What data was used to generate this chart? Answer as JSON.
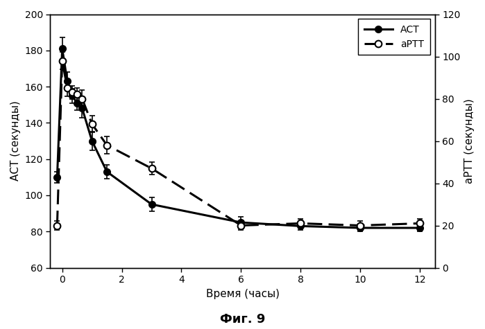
{
  "title": "Фиг. 9",
  "xlabel": "Время (часы)",
  "ylabel_left": "АСТ (секунды)",
  "ylabel_right": "аРТТ (секунды)",
  "ylim_left": [
    60,
    200
  ],
  "ylim_right": [
    0,
    120
  ],
  "xlim": [
    -0.4,
    12.5
  ],
  "xticks": [
    0,
    2,
    4,
    6,
    8,
    10,
    12
  ],
  "yticks_left": [
    60,
    80,
    100,
    120,
    140,
    160,
    180,
    200
  ],
  "yticks_right": [
    0,
    20,
    40,
    60,
    80,
    100,
    120
  ],
  "ACT_x": [
    -0.17,
    0.0,
    0.17,
    0.33,
    0.5,
    0.67,
    1.0,
    1.5,
    3.0,
    6.0,
    8.0,
    10.0,
    12.0
  ],
  "ACT_y": [
    110,
    181,
    163,
    155,
    151,
    148,
    130,
    113,
    95,
    85,
    83,
    82,
    82
  ],
  "ACT_yerr": [
    3,
    6,
    5,
    4,
    4,
    5,
    5,
    4,
    4,
    3,
    2,
    2,
    2
  ],
  "aPTT_x": [
    -0.17,
    0.0,
    0.17,
    0.33,
    0.5,
    0.67,
    1.0,
    1.5,
    3.0,
    6.0,
    8.0,
    10.0,
    12.0
  ],
  "aPTT_y": [
    20,
    98,
    85,
    83,
    82,
    80,
    68,
    58,
    47,
    20,
    21,
    20,
    21
  ],
  "aPTT_yerr": [
    2,
    4,
    4,
    3,
    3,
    4,
    4,
    4,
    3,
    2,
    2,
    2,
    2
  ],
  "background_color": "#ffffff",
  "line_color": "#000000"
}
